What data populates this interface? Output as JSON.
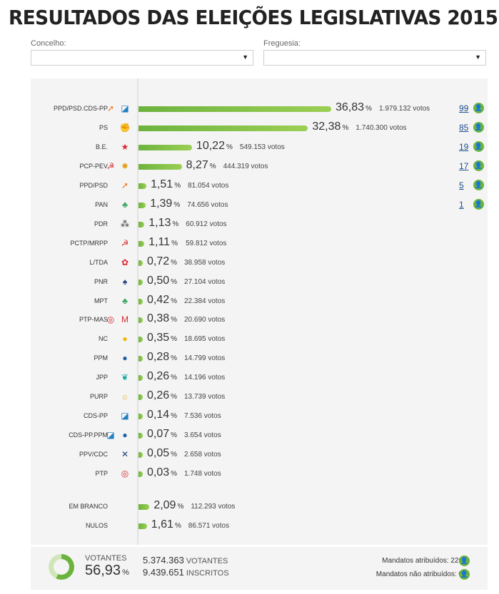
{
  "header": {
    "title": "RESULTADOS DAS ELEIÇÕES LEGISLATIVAS 2015"
  },
  "filters": {
    "concelho": {
      "label": "Concelho:",
      "value": ""
    },
    "freguesia": {
      "label": "Freguesia:",
      "value": ""
    }
  },
  "units": {
    "percent": "%"
  },
  "parties": [
    {
      "name": "PPD/PSD.CDS-PP",
      "percent": "36,83",
      "votes": "1.979.132 votos",
      "seats": "99",
      "icons": [
        "psd-arrow-icon",
        "cds-square-icon"
      ]
    },
    {
      "name": "PS",
      "percent": "32,38",
      "votes": "1.740.300 votos",
      "seats": "85",
      "icons": [
        "ps-fist-icon"
      ]
    },
    {
      "name": "B.E.",
      "percent": "10,22",
      "votes": "549.153 votos",
      "seats": "19",
      "icons": [
        "be-star-icon"
      ]
    },
    {
      "name": "PCP-PEV",
      "percent": "8,27",
      "votes": "444.319 votos",
      "seats": "17",
      "icons": [
        "hammer-sickle-icon",
        "sunflower-icon"
      ]
    },
    {
      "name": "PPD/PSD",
      "percent": "1,51",
      "votes": "81.054 votos",
      "seats": "5",
      "icons": [
        "psd-arrow-icon"
      ]
    },
    {
      "name": "PAN",
      "percent": "1,39",
      "votes": "74.656 votos",
      "seats": "1",
      "icons": [
        "pan-tree-icon"
      ]
    },
    {
      "name": "PDR",
      "percent": "1,13",
      "votes": "60.912 votos",
      "seats": "",
      "icons": [
        "pdr-dots-icon"
      ]
    },
    {
      "name": "PCTP/MRPP",
      "percent": "1,11",
      "votes": "59.812 votos",
      "seats": "",
      "icons": [
        "pctp-hammer-icon"
      ]
    },
    {
      "name": "L/TDA",
      "percent": "0,72",
      "votes": "38.958 votos",
      "seats": "",
      "icons": [
        "poppy-icon"
      ]
    },
    {
      "name": "PNR",
      "percent": "0,50",
      "votes": "27.104 votos",
      "seats": "",
      "icons": [
        "pnr-flame-icon"
      ]
    },
    {
      "name": "MPT",
      "percent": "0,42",
      "votes": "22.384 votos",
      "seats": "",
      "icons": [
        "clover-icon"
      ]
    },
    {
      "name": "PTP-MAS",
      "percent": "0,38",
      "votes": "20.690 votos",
      "seats": "",
      "icons": [
        "ptp-swirl-icon",
        "mas-logo-icon"
      ]
    },
    {
      "name": "NC",
      "percent": "0,35",
      "votes": "18.695 votos",
      "seats": "",
      "icons": [
        "nos-logo-icon"
      ]
    },
    {
      "name": "PPM",
      "percent": "0,28",
      "votes": "14.799 votos",
      "seats": "",
      "icons": [
        "ppm-circle-icon"
      ]
    },
    {
      "name": "JPP",
      "percent": "0,26",
      "votes": "14.196 votos",
      "seats": "",
      "icons": [
        "jpp-leaf-icon"
      ]
    },
    {
      "name": "PURP",
      "percent": "0,26",
      "votes": "13.739 votos",
      "seats": "",
      "icons": [
        "purp-sun-icon"
      ]
    },
    {
      "name": "CDS-PP",
      "percent": "0,14",
      "votes": "7.536 votos",
      "seats": "",
      "icons": [
        "cds-square-icon"
      ]
    },
    {
      "name": "CDS-PP.PPM",
      "percent": "0,07",
      "votes": "3.654 votos",
      "seats": "",
      "icons": [
        "cds-square-icon",
        "ppm-circle-icon"
      ]
    },
    {
      "name": "PPV/CDC",
      "percent": "0,05",
      "votes": "2.658 votos",
      "seats": "",
      "icons": [
        "ppv-cross-icon"
      ]
    },
    {
      "name": "PTP",
      "percent": "0,03",
      "votes": "1.748 votos",
      "seats": "",
      "icons": [
        "ptp-swirl-icon"
      ]
    }
  ],
  "others": [
    {
      "name": "EM BRANCO",
      "percent": "2,09",
      "votes": "112.293 votos"
    },
    {
      "name": "NULOS",
      "percent": "1,61",
      "votes": "86.571 votos"
    }
  ],
  "footer": {
    "votantes_label": "VOTANTES",
    "votantes_percent": "56,93",
    "votantes_count": "5.374.363",
    "votantes_unit": "VOTANTES",
    "inscritos_count": "9.439.651",
    "inscritos_unit": "INSCRITOS",
    "mandatos_atribuidos": "Mandatos atribuídos: 226",
    "mandatos_nao_atribuidos": "Mandatos não atribuídos: 0"
  },
  "colors": {
    "bar_start": "#6cb33e",
    "bar_end": "#9ccf54",
    "seat_link": "#1f4e8c"
  }
}
